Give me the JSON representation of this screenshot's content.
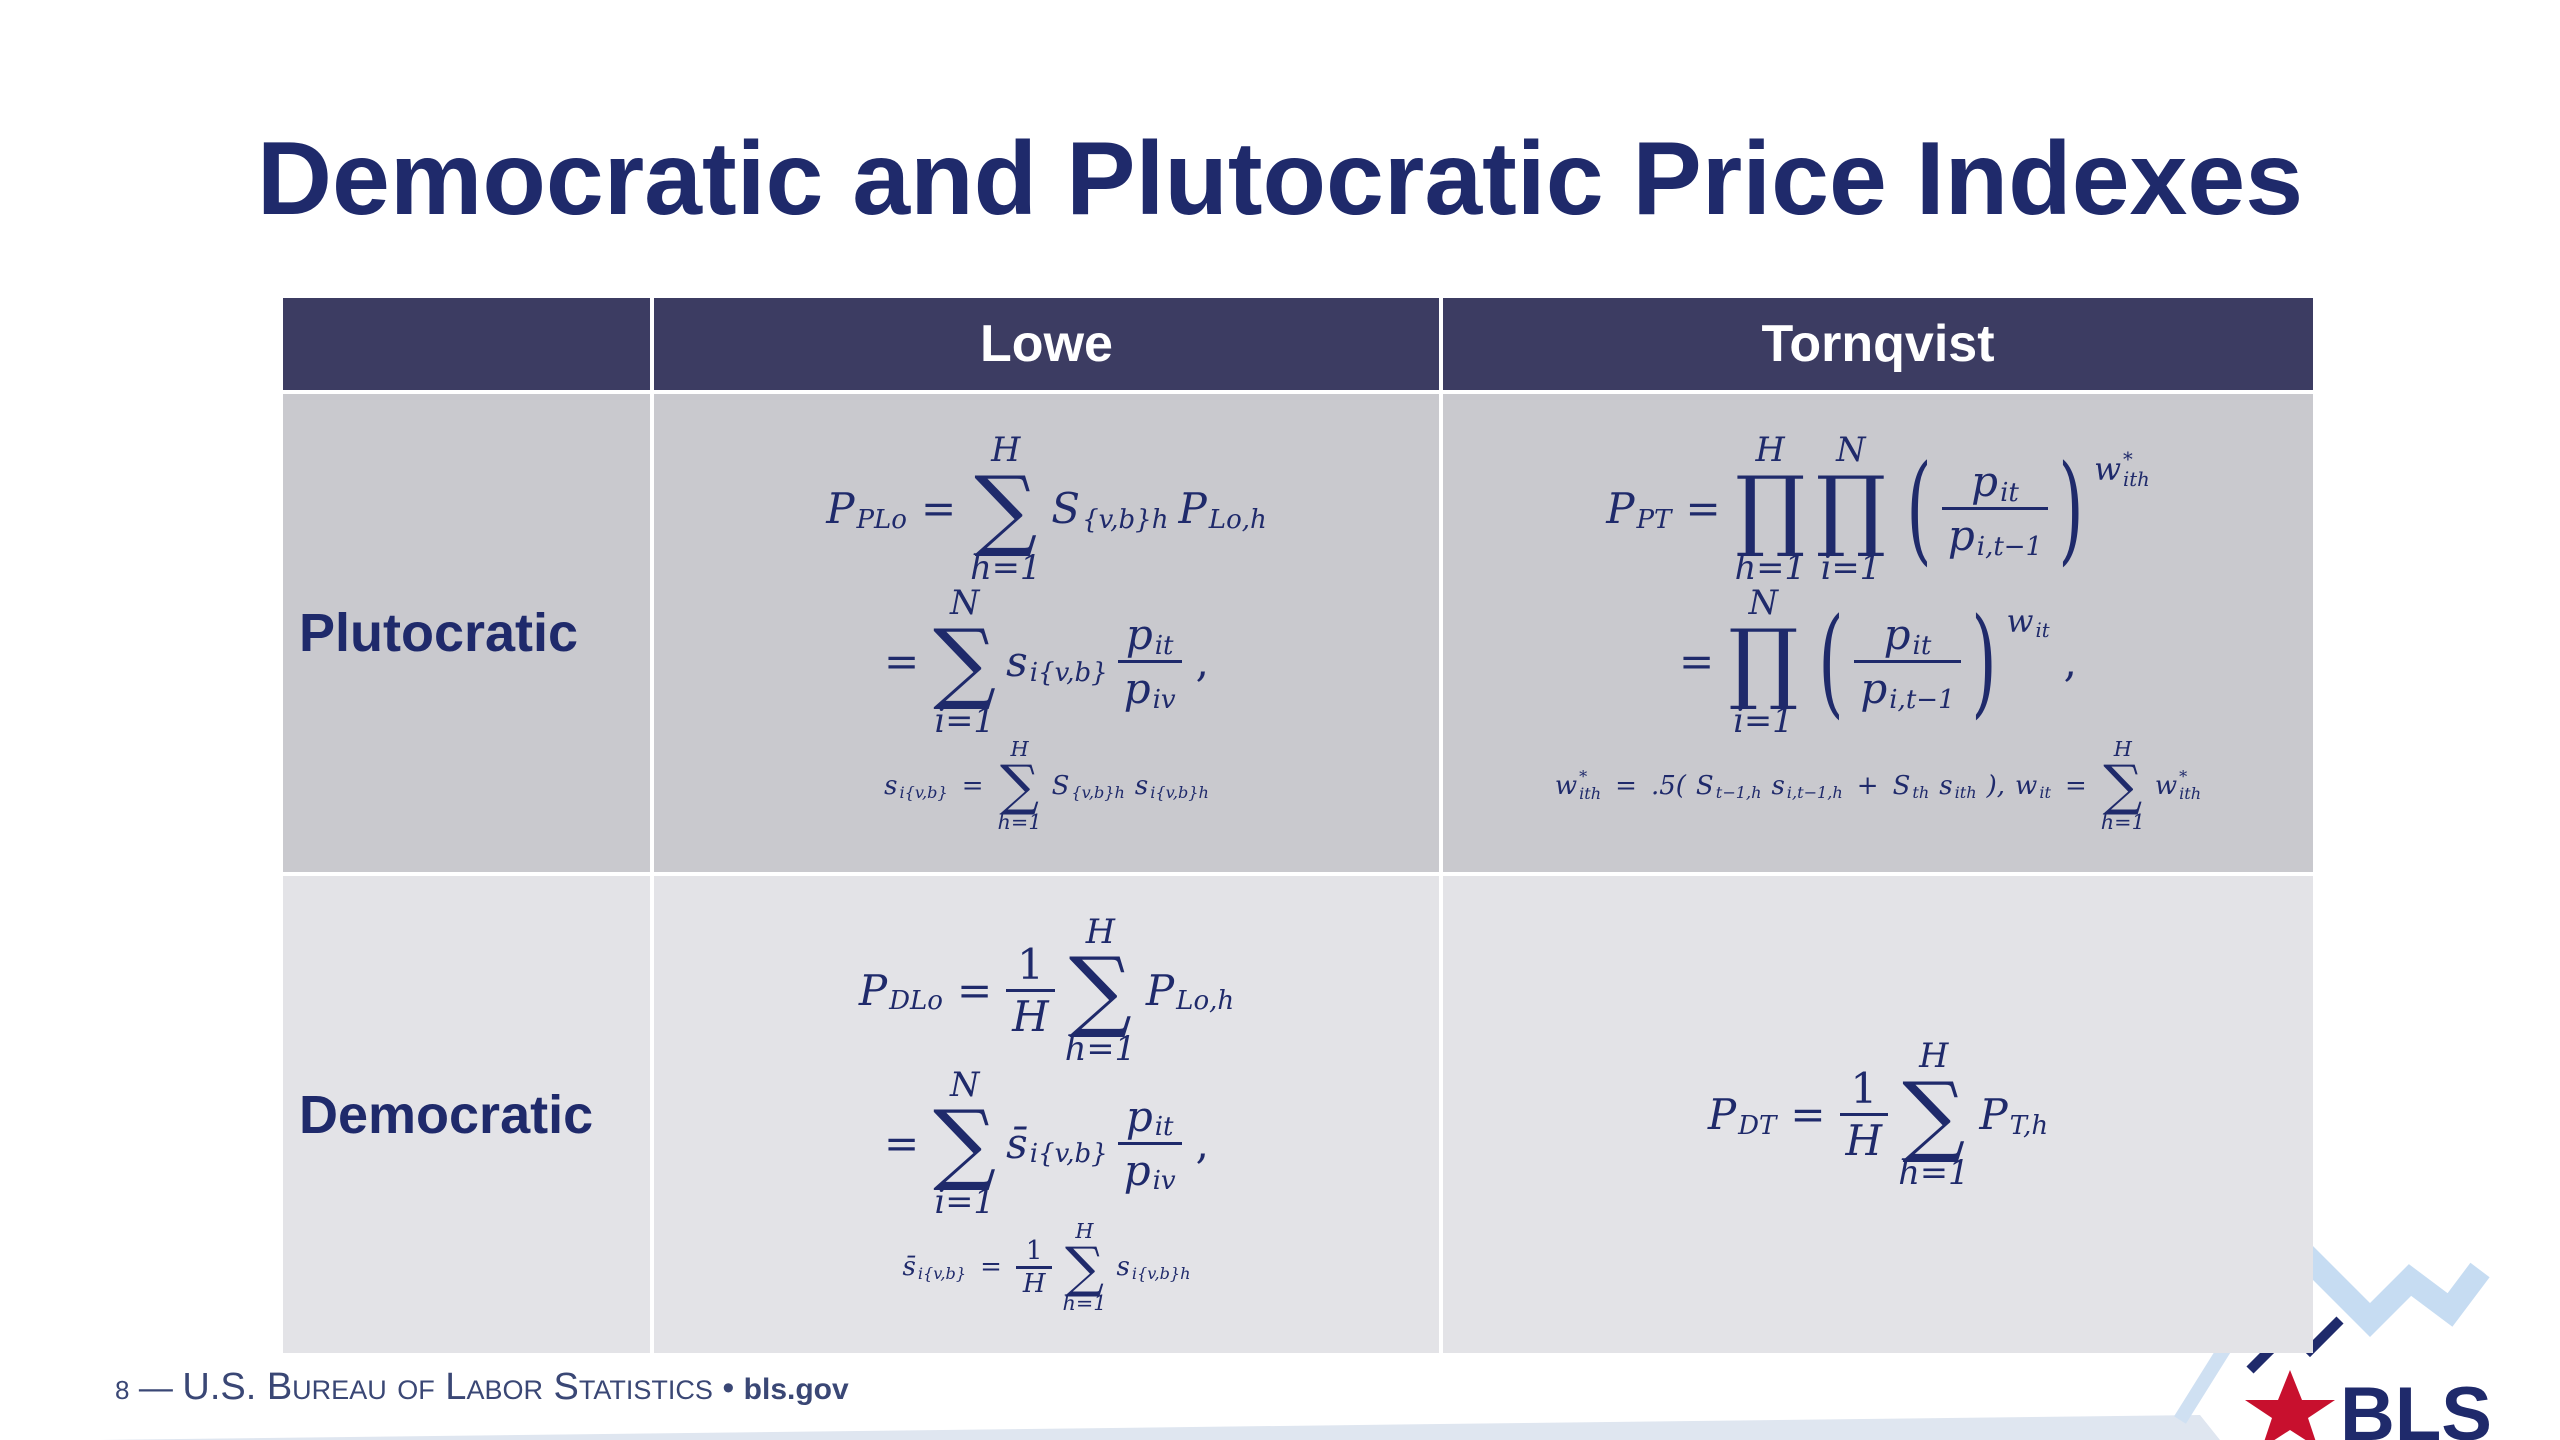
{
  "title": "Democratic and Plutocratic Price Indexes",
  "table": {
    "header": [
      "Lowe",
      "Tornqvist"
    ],
    "rows": [
      {
        "label": "Plutocratic",
        "cells": [
          [
            [
              {
                "t": "P",
                "sub": "PLo"
              },
              {
                "op": "="
              },
              {
                "big": "∑",
                "over": "H",
                "under": "h=1"
              },
              {
                "t": "S",
                "sub": "{v,b}h"
              },
              {
                "t": "P",
                "sub": "Lo,h"
              }
            ],
            [
              {
                "op": "="
              },
              {
                "big": "∑",
                "over": "N",
                "under": "i=1"
              },
              {
                "t": "s",
                "sub": "i{v,b}"
              },
              {
                "frac": {
                  "num": [
                    {
                      "t": "p",
                      "sub": "it"
                    }
                  ],
                  "den": [
                    {
                      "t": "p",
                      "sub": "iv"
                    }
                  ]
                }
              },
              {
                "op": ","
              }
            ],
            [
              {
                "t": "s",
                "sub": "i{v,b}"
              },
              {
                "op": "="
              },
              {
                "big": "∑",
                "over": "H",
                "under": "h=1"
              },
              {
                "t": "S",
                "sub": "{v,b}h"
              },
              {
                "t": "s",
                "sub": "i{v,b}h"
              }
            ]
          ],
          [
            [
              {
                "t": "P",
                "sub": "PT"
              },
              {
                "op": "="
              },
              {
                "big": "∏",
                "over": "H",
                "under": "h=1"
              },
              {
                "big": "∏",
                "over": "N",
                "under": "i=1"
              },
              {
                "open": "(",
                "body": [
                  {
                    "frac": {
                      "num": [
                        {
                          "t": "p",
                          "sub": "it"
                        }
                      ],
                      "den": [
                        {
                          "t": "p",
                          "sub": "i,t−1"
                        }
                      ]
                    }
                  }
                ],
                "close": ")",
                "sup": [
                  {
                    "t": "w",
                    "sup": "*",
                    "sub": "ith"
                  }
                ]
              }
            ],
            [
              {
                "op": "="
              },
              {
                "big": "∏",
                "over": "N",
                "under": "i=1"
              },
              {
                "open": "(",
                "body": [
                  {
                    "frac": {
                      "num": [
                        {
                          "t": "p",
                          "sub": "it"
                        }
                      ],
                      "den": [
                        {
                          "t": "p",
                          "sub": "i,t−1"
                        }
                      ]
                    }
                  }
                ],
                "close": ")",
                "sup": [
                  {
                    "t": "w",
                    "sub": "it"
                  }
                ]
              },
              {
                "op": ","
              }
            ],
            [
              {
                "t": "w",
                "sup": "*",
                "sub": "ith"
              },
              {
                "op": "="
              },
              {
                "t": ".5("
              },
              {
                "t": "S",
                "sub": "t−1,h"
              },
              {
                "t": "s",
                "sub": "i,t−1,h"
              },
              {
                "op": "+"
              },
              {
                "t": "S",
                "sub": "th"
              },
              {
                "t": "s",
                "sub": "ith"
              },
              {
                "t": "),"
              },
              {
                "t": "w",
                "sub": "it"
              },
              {
                "op": "="
              },
              {
                "big": "∑",
                "over": "H",
                "under": "h=1"
              },
              {
                "t": "w",
                "sup": "*",
                "sub": "ith"
              }
            ]
          ]
        ]
      },
      {
        "label": "Democratic",
        "cells": [
          [
            [
              {
                "t": "P",
                "sub": "DLo"
              },
              {
                "op": "="
              },
              {
                "frac": {
                  "num": [
                    {
                      "op": "1"
                    }
                  ],
                  "den": [
                    {
                      "t": "H"
                    }
                  ]
                }
              },
              {
                "big": "∑",
                "over": "H",
                "under": "h=1"
              },
              {
                "t": "P",
                "sub": "Lo,h"
              }
            ],
            [
              {
                "op": "="
              },
              {
                "big": "∑",
                "over": "N",
                "under": "i=1"
              },
              {
                "t": "s̄",
                "sub": "i{v,b}"
              },
              {
                "frac": {
                  "num": [
                    {
                      "t": "p",
                      "sub": "it"
                    }
                  ],
                  "den": [
                    {
                      "t": "p",
                      "sub": "iv"
                    }
                  ]
                }
              },
              {
                "op": ","
              }
            ],
            [
              {
                "t": "s̄",
                "sub": "i{v,b}"
              },
              {
                "op": "="
              },
              {
                "frac": {
                  "num": [
                    {
                      "op": "1"
                    }
                  ],
                  "den": [
                    {
                      "t": "H"
                    }
                  ]
                }
              },
              {
                "big": "∑",
                "over": "H",
                "under": "h=1"
              },
              {
                "t": "s",
                "sub": "i{v,b}h"
              }
            ]
          ],
          [
            [
              {
                "t": "P",
                "sub": "DT"
              },
              {
                "op": "="
              },
              {
                "frac": {
                  "num": [
                    {
                      "op": "1"
                    }
                  ],
                  "den": [
                    {
                      "t": "H"
                    }
                  ]
                }
              },
              {
                "big": "∑",
                "over": "H",
                "under": "h=1"
              },
              {
                "t": "P",
                "sub": "T,h"
              }
            ]
          ]
        ]
      }
    ]
  },
  "footer": {
    "page": "8",
    "separator": "—",
    "org": "U.S. Bureau of Labor Statistics",
    "bullet": "•",
    "site": "bls.gov"
  },
  "logo": "BLS"
}
